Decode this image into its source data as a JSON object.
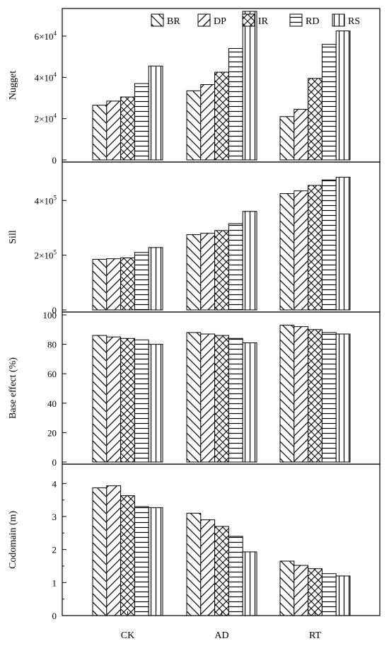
{
  "legend": [
    "BR",
    "DP",
    "IR",
    "RD",
    "RS"
  ],
  "categories": [
    "CK",
    "AD",
    "RT"
  ],
  "chart_data": [
    {
      "type": "bar",
      "ylabel": "Nugget",
      "ylim": [
        0,
        72000
      ],
      "yticks": [
        {
          "value": 0,
          "base": "0",
          "exp": ""
        },
        {
          "value": 20000,
          "base": "2×10",
          "exp": "4"
        },
        {
          "value": 40000,
          "base": "4×10",
          "exp": "4"
        },
        {
          "value": 60000,
          "base": "6×10",
          "exp": "4"
        }
      ],
      "categories": [
        "CK",
        "AD",
        "RT"
      ],
      "series": [
        {
          "name": "BR",
          "values": [
            26500,
            33500,
            21000
          ]
        },
        {
          "name": "DP",
          "values": [
            28500,
            36500,
            24500
          ]
        },
        {
          "name": "IR",
          "values": [
            30500,
            42500,
            39500
          ]
        },
        {
          "name": "RD",
          "values": [
            37000,
            54000,
            56000
          ]
        },
        {
          "name": "RS",
          "values": [
            45500,
            72000,
            62500
          ]
        }
      ]
    },
    {
      "type": "bar",
      "ylabel": "Sill",
      "ylim": [
        0,
        530000
      ],
      "yticks": [
        {
          "value": 0,
          "base": "0",
          "exp": ""
        },
        {
          "value": 200000,
          "base": "2×10",
          "exp": "5"
        },
        {
          "value": 400000,
          "base": "4×10",
          "exp": "5"
        }
      ],
      "categories": [
        "CK",
        "AD",
        "RT"
      ],
      "series": [
        {
          "name": "BR",
          "values": [
            185000,
            275000,
            425000
          ]
        },
        {
          "name": "DP",
          "values": [
            187000,
            280000,
            435000
          ]
        },
        {
          "name": "IR",
          "values": [
            190000,
            290000,
            455000
          ]
        },
        {
          "name": "RD",
          "values": [
            210000,
            315000,
            475000
          ]
        },
        {
          "name": "RS",
          "values": [
            228000,
            360000,
            485000
          ]
        }
      ]
    },
    {
      "type": "bar",
      "ylabel": "Base effect (%)",
      "ylim": [
        0,
        100
      ],
      "yticks": [
        {
          "value": 0,
          "base": "0",
          "exp": ""
        },
        {
          "value": 20,
          "base": "20",
          "exp": ""
        },
        {
          "value": 40,
          "base": "40",
          "exp": ""
        },
        {
          "value": 60,
          "base": "60",
          "exp": ""
        },
        {
          "value": 80,
          "base": "80",
          "exp": ""
        },
        {
          "value": 100,
          "base": "100",
          "exp": ""
        }
      ],
      "categories": [
        "CK",
        "AD",
        "RT"
      ],
      "series": [
        {
          "name": "BR",
          "values": [
            86,
            88,
            93
          ]
        },
        {
          "name": "DP",
          "values": [
            85,
            87,
            92
          ]
        },
        {
          "name": "IR",
          "values": [
            84,
            86,
            90
          ]
        },
        {
          "name": "RD",
          "values": [
            83,
            84,
            88
          ]
        },
        {
          "name": "RS",
          "values": [
            80,
            81,
            87
          ]
        }
      ]
    },
    {
      "type": "bar",
      "ylabel": "Codomain (m)",
      "ylim": [
        0,
        4.5
      ],
      "yticks": [
        {
          "value": 0,
          "base": "0",
          "exp": ""
        },
        {
          "value": 1,
          "base": "1",
          "exp": ""
        },
        {
          "value": 2,
          "base": "2",
          "exp": ""
        },
        {
          "value": 3,
          "base": "3",
          "exp": ""
        },
        {
          "value": 4,
          "base": "4",
          "exp": ""
        }
      ],
      "categories": [
        "CK",
        "AD",
        "RT"
      ],
      "series": [
        {
          "name": "BR",
          "values": [
            3.87,
            3.1,
            1.65
          ]
        },
        {
          "name": "DP",
          "values": [
            3.93,
            2.9,
            1.52
          ]
        },
        {
          "name": "IR",
          "values": [
            3.63,
            2.7,
            1.42
          ]
        },
        {
          "name": "RD",
          "values": [
            3.3,
            2.4,
            1.27
          ]
        },
        {
          "name": "RS",
          "values": [
            3.27,
            1.93,
            1.2
          ]
        }
      ]
    }
  ]
}
